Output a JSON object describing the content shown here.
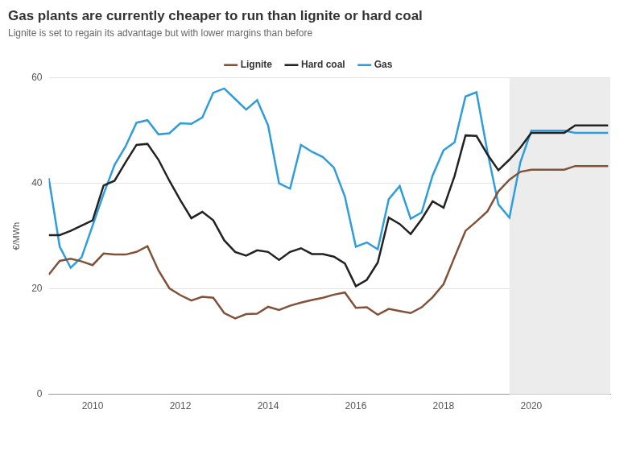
{
  "chart_data": {
    "type": "line",
    "title": "Gas plants are currently cheaper to run than lignite or hard coal",
    "subtitle": "Lignite is set to regain its advantage but with lower margins than before",
    "y_label": "€/MWh",
    "x": [
      2009,
      2009.25,
      2009.5,
      2009.75,
      2010,
      2010.25,
      2010.5,
      2010.75,
      2011,
      2011.25,
      2011.5,
      2011.75,
      2012,
      2012.25,
      2012.5,
      2012.75,
      2013,
      2013.25,
      2013.5,
      2013.75,
      2014,
      2014.25,
      2014.5,
      2014.75,
      2015,
      2015.25,
      2015.5,
      2015.75,
      2016,
      2016.25,
      2016.5,
      2016.75,
      2017,
      2017.25,
      2017.5,
      2017.75,
      2018,
      2018.25,
      2018.5,
      2018.75,
      2019,
      2019.25,
      2019.5,
      2019.75,
      2020,
      2020.25,
      2020.5,
      2020.75,
      2021,
      2021.25,
      2021.5,
      2021.75
    ],
    "series": [
      {
        "name": "Lignite",
        "color": "#7f5239",
        "values": [
          22.7,
          25.3,
          25.7,
          25.2,
          24.5,
          26.7,
          26.5,
          26.5,
          27,
          28.1,
          23.5,
          20.1,
          18.8,
          17.8,
          18.5,
          18.3,
          15.4,
          14.4,
          15.2,
          15.3,
          16.6,
          16,
          16.8,
          17.4,
          17.9,
          18.3,
          18.9,
          19.3,
          16.4,
          16.5,
          15.1,
          16.2,
          15.8,
          15.4,
          16.5,
          18.4,
          20.9,
          26,
          31,
          32.8,
          34.7,
          38.5,
          40.7,
          42.2,
          42.6,
          42.6,
          42.6,
          42.6,
          43.3,
          43.3,
          43.3,
          43.3
        ]
      },
      {
        "name": "Hard coal",
        "color": "#222222",
        "values": [
          30.2,
          30.2,
          31,
          32,
          33,
          39.6,
          40.5,
          44,
          47.3,
          47.5,
          44.5,
          40.5,
          36.8,
          33.4,
          34.6,
          33,
          29.2,
          27,
          26.3,
          27.3,
          27,
          25.5,
          27,
          27.7,
          26.6,
          26.6,
          26.1,
          24.8,
          20.5,
          21.7,
          25,
          33.5,
          32.3,
          30.4,
          33.2,
          36.6,
          35.4,
          41.4,
          49.1,
          49,
          45.5,
          42.5,
          44.5,
          46.8,
          49.6,
          49.6,
          49.6,
          49.6,
          51,
          51,
          51,
          51
        ]
      },
      {
        "name": "Gas",
        "color": "#2f9ddb",
        "values": [
          41,
          28,
          24,
          26,
          32,
          38,
          43.5,
          47,
          51.5,
          52,
          49.3,
          49.5,
          51.4,
          51.3,
          52.5,
          57.2,
          58,
          56,
          54,
          55.8,
          51,
          40,
          39,
          47.3,
          46,
          45,
          43,
          37.5,
          28,
          28.8,
          27.5,
          37,
          39.5,
          33.3,
          34.5,
          41.5,
          46.3,
          47.8,
          56.5,
          57.3,
          46,
          36,
          33.5,
          44,
          50,
          50,
          50,
          50,
          49.6,
          49.6,
          49.6,
          49.6
        ]
      }
    ],
    "shaded_x": [
      2019.5,
      2021.8
    ],
    "xlim": [
      2009,
      2021.8
    ],
    "xticks": [
      2010,
      2012,
      2014,
      2016,
      2018,
      2020
    ],
    "ylim": [
      0,
      60
    ],
    "yticks": [
      0,
      20,
      40,
      60
    ],
    "grid": true,
    "legend": "top",
    "marker": "none",
    "line_style": "solid"
  }
}
